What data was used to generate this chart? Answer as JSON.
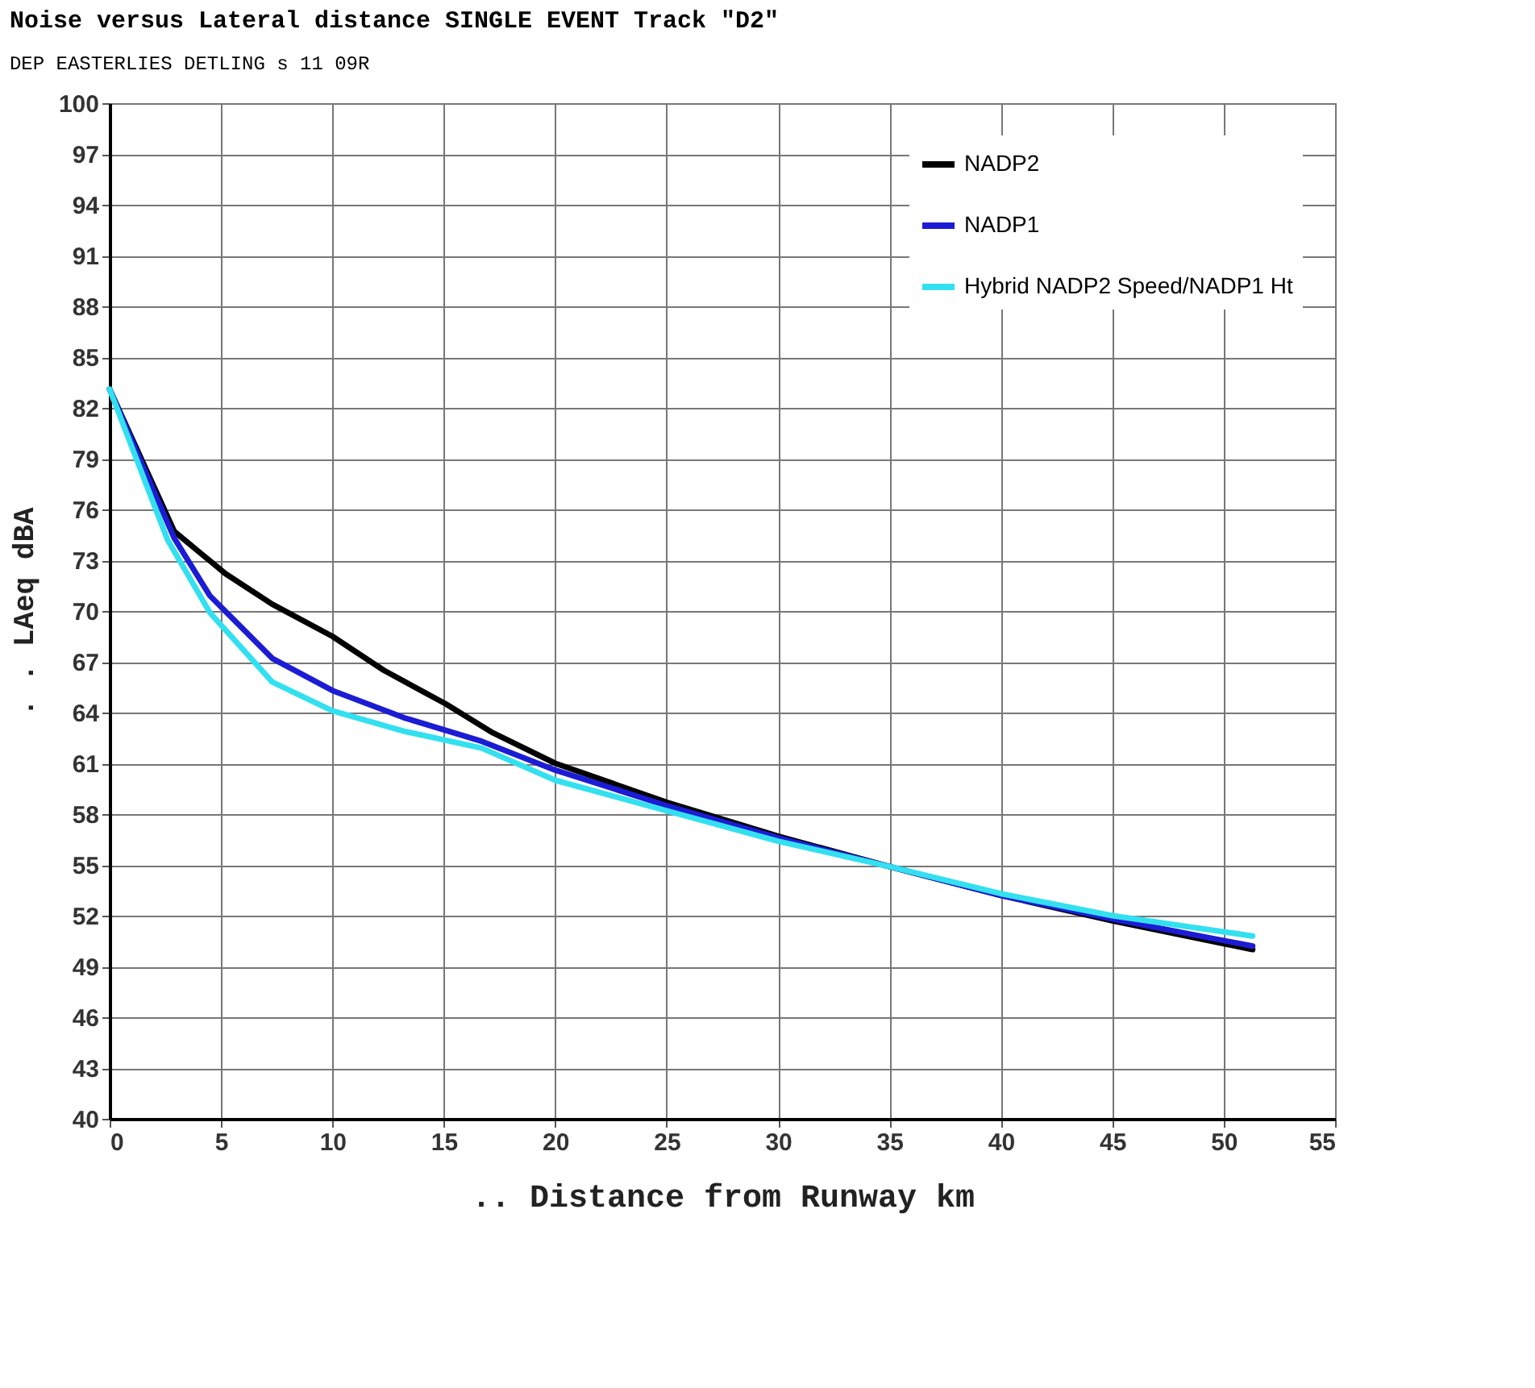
{
  "chart_data": {
    "type": "line",
    "title": "Noise versus Lateral distance SINGLE EVENT Track \"D2\"",
    "subtitle": "DEP EASTERLIES DETLING s 11 09R",
    "xlabel": ".. Distance from Runway   km",
    "ylabel": ". . LAeq dBA",
    "xlim": [
      0,
      55
    ],
    "xticks": [
      0,
      5,
      10,
      15,
      20,
      25,
      30,
      35,
      40,
      45,
      50,
      55
    ],
    "ylim": [
      40,
      100
    ],
    "yticks": [
      40,
      43,
      46,
      49,
      52,
      55,
      58,
      61,
      64,
      67,
      70,
      73,
      76,
      79,
      82,
      85,
      88,
      91,
      94,
      97,
      100
    ],
    "grid": true,
    "legend": "top right",
    "marker": "none",
    "line_style": "solid",
    "series": [
      {
        "name": "NADP2",
        "color": "#000000",
        "x": [
          0,
          2.9,
          5.2,
          7.3,
          10,
          12.3,
          15.1,
          17.2,
          20,
          25,
          30,
          35,
          40,
          45,
          51.3
        ],
        "values": [
          83.1,
          74.7,
          72.2,
          70.4,
          68.5,
          66.5,
          64.5,
          62.8,
          61.0,
          58.7,
          56.7,
          54.9,
          53.2,
          51.7,
          50.0
        ]
      },
      {
        "name": "NADP1",
        "color": "#1c1cd4",
        "x": [
          0,
          2.9,
          4.5,
          7.3,
          10,
          13.2,
          16.7,
          20,
          25,
          30,
          35,
          40,
          45,
          51.3
        ],
        "values": [
          83.1,
          74.3,
          70.9,
          67.2,
          65.3,
          63.7,
          62.3,
          60.6,
          58.5,
          56.6,
          54.9,
          53.2,
          51.8,
          50.2
        ]
      },
      {
        "name": "Hybrid NADP2 Speed/NADP1 Ht",
        "color": "#33e0f0",
        "x": [
          0,
          2.6,
          4.5,
          7.3,
          10,
          13.2,
          16.7,
          20,
          25,
          30,
          35,
          40,
          45,
          51.3
        ],
        "values": [
          83.1,
          74.2,
          69.9,
          65.8,
          64.1,
          62.9,
          61.9,
          60.0,
          58.2,
          56.4,
          54.9,
          53.3,
          52.0,
          50.8
        ]
      }
    ]
  }
}
